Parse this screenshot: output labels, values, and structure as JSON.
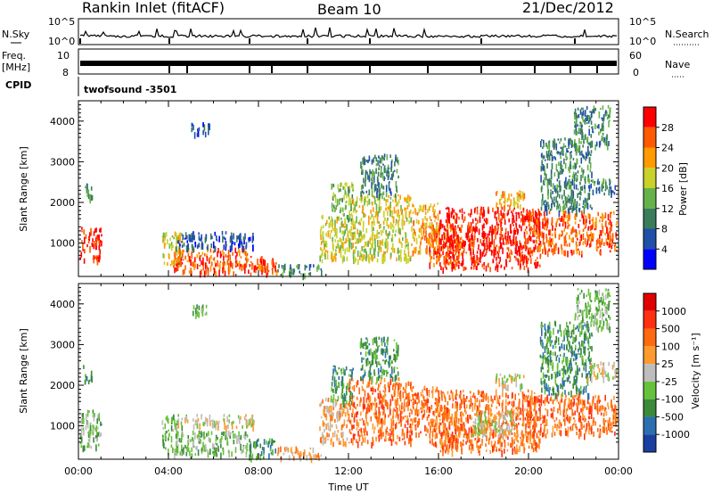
{
  "header": {
    "station": "Rankin Inlet (fitACF)",
    "beam": "Beam 10",
    "date": "21/Dec/2012"
  },
  "top_panels": {
    "nsky_label": "N.Sky",
    "nsky_ticks": [
      "10^5",
      "10^0"
    ],
    "nsearch_label": "N.Search",
    "nsearch_ticks": [
      "10^5",
      "10^0"
    ],
    "freq_label": "Freq.",
    "freq_unit": "[MHz]",
    "freq_ticks": [
      "10",
      "8"
    ],
    "nave_label": "Nave",
    "nave_ticks": [
      "60",
      "0"
    ],
    "cpid_label": "CPID",
    "cpid_value": "twofsound  -3501"
  },
  "chart_data": [
    {
      "type": "heatmap",
      "quantity": "Power",
      "ylabel": "Slant Range [km]",
      "xlabel": "",
      "ylim": [
        180,
        4500
      ],
      "xlim": [
        0,
        24
      ],
      "y_ticks": [
        1000,
        2000,
        3000,
        4000
      ],
      "y_tick_labels": [
        "1000",
        "2000",
        "3000",
        "4000"
      ],
      "colorbar": {
        "label": "Power [dB]",
        "ticks": [
          "4",
          "8",
          "12",
          "16",
          "20",
          "24",
          "28"
        ],
        "colors": [
          "#0000ff",
          "#2150aa",
          "#3a7d5a",
          "#66b24a",
          "#c9d12c",
          "#ff9a00",
          "#ff5a00",
          "#ff0000"
        ]
      },
      "regions": [
        {
          "t0": 0.05,
          "t1": 1.0,
          "r0": 600,
          "r1": 1400,
          "level": 7
        },
        {
          "t0": 0.2,
          "t1": 0.6,
          "r0": 2100,
          "r1": 2500,
          "level": 2
        },
        {
          "t0": 3.7,
          "t1": 4.6,
          "r0": 400,
          "r1": 1300,
          "level": 4
        },
        {
          "t0": 4.2,
          "t1": 7.5,
          "r0": 300,
          "r1": 900,
          "level": 6
        },
        {
          "t0": 4.3,
          "t1": 7.8,
          "r0": 900,
          "r1": 1300,
          "level": 1
        },
        {
          "t0": 7.5,
          "t1": 8.8,
          "r0": 250,
          "r1": 700,
          "level": 6
        },
        {
          "t0": 8.8,
          "t1": 10.8,
          "r0": 250,
          "r1": 500,
          "level": 2
        },
        {
          "t0": 10.7,
          "t1": 12.0,
          "r0": 600,
          "r1": 1700,
          "level": 4
        },
        {
          "t0": 11.2,
          "t1": 12.2,
          "r0": 1600,
          "r1": 2500,
          "level": 3
        },
        {
          "t0": 12.0,
          "t1": 14.8,
          "r0": 600,
          "r1": 2200,
          "level": 4
        },
        {
          "t0": 12.5,
          "t1": 14.2,
          "r0": 2200,
          "r1": 3200,
          "level": 2
        },
        {
          "t0": 14.8,
          "t1": 16.0,
          "r0": 800,
          "r1": 2000,
          "level": 5
        },
        {
          "t0": 15.5,
          "t1": 17.0,
          "r0": 500,
          "r1": 1500,
          "level": 6
        },
        {
          "t0": 16.0,
          "t1": 20.5,
          "r0": 400,
          "r1": 1900,
          "level": 7
        },
        {
          "t0": 18.5,
          "t1": 19.8,
          "r0": 1900,
          "r1": 2300,
          "level": 5
        },
        {
          "t0": 19.8,
          "t1": 23.9,
          "r0": 800,
          "r1": 1800,
          "level": 6
        },
        {
          "t0": 20.5,
          "t1": 22.8,
          "r0": 1800,
          "r1": 3600,
          "level": 2
        },
        {
          "t0": 22.6,
          "t1": 23.9,
          "r0": 2200,
          "r1": 2600,
          "level": 2
        },
        {
          "t0": 22.0,
          "t1": 23.6,
          "r0": 3400,
          "r1": 4400,
          "level": 2
        },
        {
          "t0": 5.0,
          "t1": 5.8,
          "r0": 3700,
          "r1": 4000,
          "level": 1
        }
      ]
    },
    {
      "type": "heatmap",
      "quantity": "Velocity",
      "ylabel": "Slant Range [km]",
      "xlabel": "Time UT",
      "ylim": [
        180,
        4500
      ],
      "xlim": [
        0,
        24
      ],
      "y_ticks": [
        1000,
        2000,
        3000,
        4000
      ],
      "y_tick_labels": [
        "1000",
        "2000",
        "3000",
        "4000"
      ],
      "x_ticks": [
        0,
        4,
        8,
        12,
        16,
        20,
        24
      ],
      "x_tick_labels": [
        "00:00",
        "04:00",
        "08:00",
        "12:00",
        "16:00",
        "20:00",
        "00:00"
      ],
      "colorbar": {
        "label": "Velocity [m s⁻¹]",
        "ticks": [
          "1000",
          "500",
          "100",
          "25",
          "-25",
          "-100",
          "-500",
          "-1000"
        ],
        "colors": [
          "#1a3fa0",
          "#2b6fb0",
          "#3a8a3a",
          "#66c23a",
          "#bdbdbd",
          "#ff9a30",
          "#ff6a10",
          "#ff3010",
          "#e00000"
        ]
      },
      "regions": [
        {
          "t0": 0.05,
          "t1": 1.0,
          "r0": 500,
          "r1": 1400,
          "level": 3
        },
        {
          "t0": 0.2,
          "t1": 0.6,
          "r0": 2100,
          "r1": 2500,
          "level": 2
        },
        {
          "t0": 3.7,
          "t1": 4.6,
          "r0": 400,
          "r1": 1300,
          "level": 3
        },
        {
          "t0": 4.2,
          "t1": 7.5,
          "r0": 300,
          "r1": 900,
          "level": 3
        },
        {
          "t0": 4.3,
          "t1": 7.8,
          "r0": 1000,
          "r1": 1300,
          "level": 4
        },
        {
          "t0": 7.5,
          "t1": 8.8,
          "r0": 250,
          "r1": 700,
          "level": 2
        },
        {
          "t0": 8.8,
          "t1": 10.8,
          "r0": 250,
          "r1": 500,
          "level": 5
        },
        {
          "t0": 10.7,
          "t1": 12.0,
          "r0": 600,
          "r1": 1700,
          "level": 5
        },
        {
          "t0": 11.2,
          "t1": 12.2,
          "r0": 1600,
          "r1": 2500,
          "level": 2
        },
        {
          "t0": 12.0,
          "t1": 14.8,
          "r0": 600,
          "r1": 2200,
          "level": 6
        },
        {
          "t0": 12.5,
          "t1": 14.2,
          "r0": 2200,
          "r1": 3200,
          "level": 2
        },
        {
          "t0": 14.8,
          "t1": 16.0,
          "r0": 800,
          "r1": 2000,
          "level": 6
        },
        {
          "t0": 15.5,
          "t1": 17.0,
          "r0": 500,
          "r1": 1500,
          "level": 6
        },
        {
          "t0": 16.0,
          "t1": 20.5,
          "r0": 400,
          "r1": 1900,
          "level": 6
        },
        {
          "t0": 17.5,
          "t1": 19.5,
          "r0": 800,
          "r1": 1400,
          "level": 4
        },
        {
          "t0": 18.5,
          "t1": 19.8,
          "r0": 1900,
          "r1": 2300,
          "level": 4
        },
        {
          "t0": 19.8,
          "t1": 23.9,
          "r0": 800,
          "r1": 1800,
          "level": 6
        },
        {
          "t0": 20.5,
          "t1": 22.8,
          "r0": 1800,
          "r1": 3600,
          "level": 2
        },
        {
          "t0": 22.6,
          "t1": 23.9,
          "r0": 2200,
          "r1": 2600,
          "level": 4
        },
        {
          "t0": 22.0,
          "t1": 23.6,
          "r0": 3400,
          "r1": 4400,
          "level": 3
        },
        {
          "t0": 5.0,
          "t1": 5.8,
          "r0": 3700,
          "r1": 4000,
          "level": 3
        }
      ]
    }
  ]
}
